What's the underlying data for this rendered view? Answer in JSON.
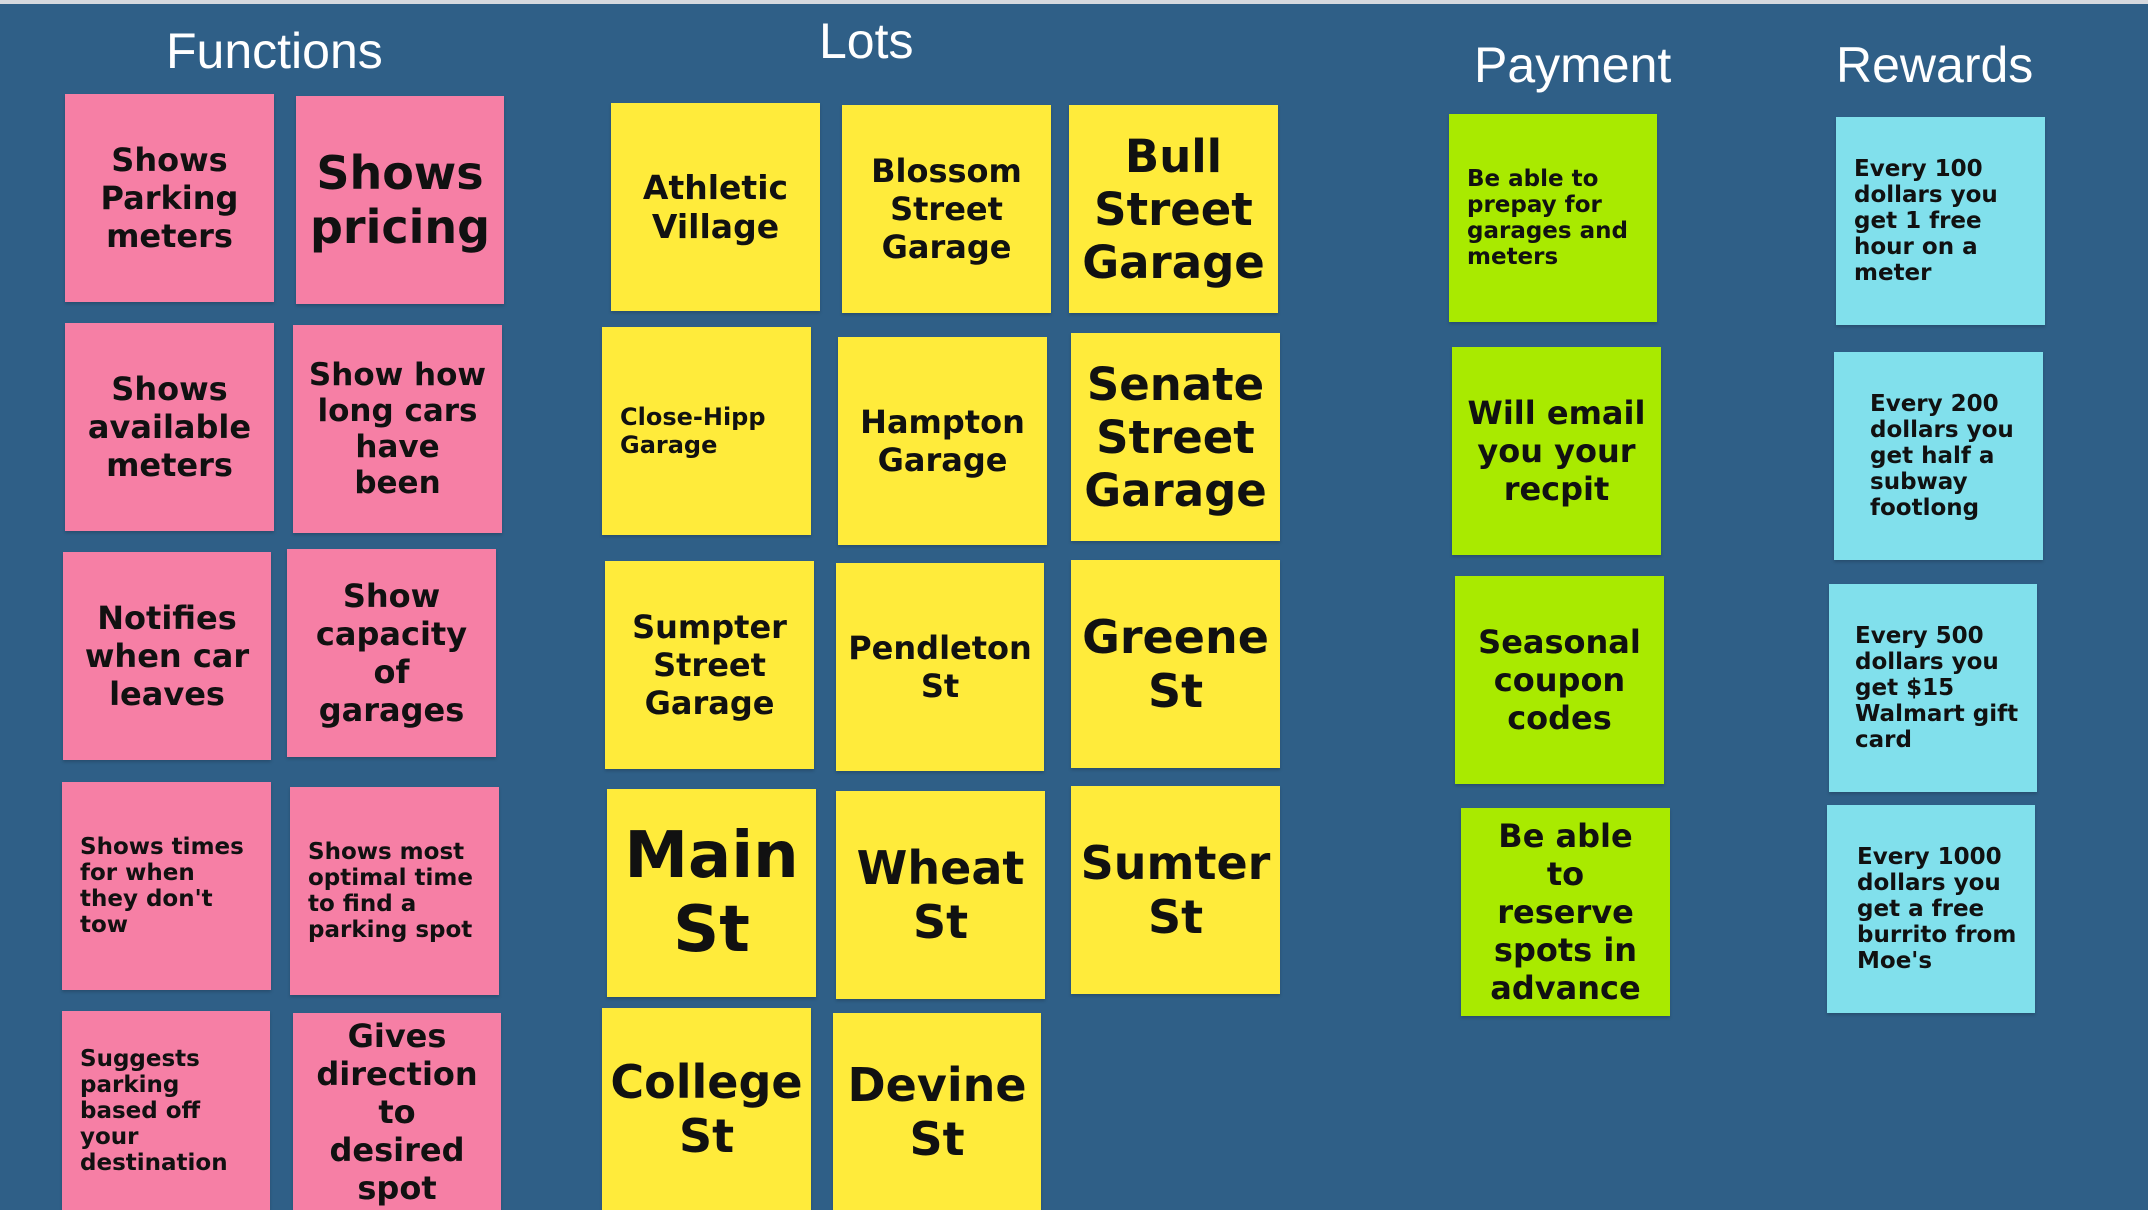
{
  "headings": {
    "functions": "Functions",
    "lots": "Lots",
    "payment": "Payment",
    "rewards": "Rewards"
  },
  "colors": {
    "background": "#2f5f87",
    "functions_note": "#f67fa5",
    "lots_note": "#ffeb3b",
    "payment_note": "#a9ea00",
    "rewards_note": "#81e0ec"
  },
  "functions": [
    "Shows Parking meters",
    "Shows pricing",
    "Shows available meters",
    "Show how long cars have been",
    "Notifies when car leaves",
    "Show capacity of garages",
    "Shows times for when they don't tow",
    "Shows most optimal time to find a parking spot",
    "Suggests parking based off your destination",
    "Gives direction to desired spot"
  ],
  "lots": [
    "Athletic Village",
    "Blossom Street Garage",
    "Bull Street Garage",
    "Close-Hipp Garage",
    "Hampton Garage",
    "Senate Street Garage",
    "Sumpter Street Garage",
    "Pendleton St",
    "Greene St",
    "Main St",
    "Wheat St",
    "Sumter St",
    "College St",
    "Devine St"
  ],
  "payment": [
    "Be able to prepay for garages and meters",
    "Will email you your recpit",
    "Seasonal coupon codes",
    "Be able to reserve spots in advance"
  ],
  "rewards": [
    "Every 100 dollars you get 1 free hour on a meter",
    "Every 200 dollars you get half a subway footlong",
    "Every 500 dollars you get $15 Walmart gift card",
    "Every 1000 dollars you get a free burrito from Moe's"
  ]
}
